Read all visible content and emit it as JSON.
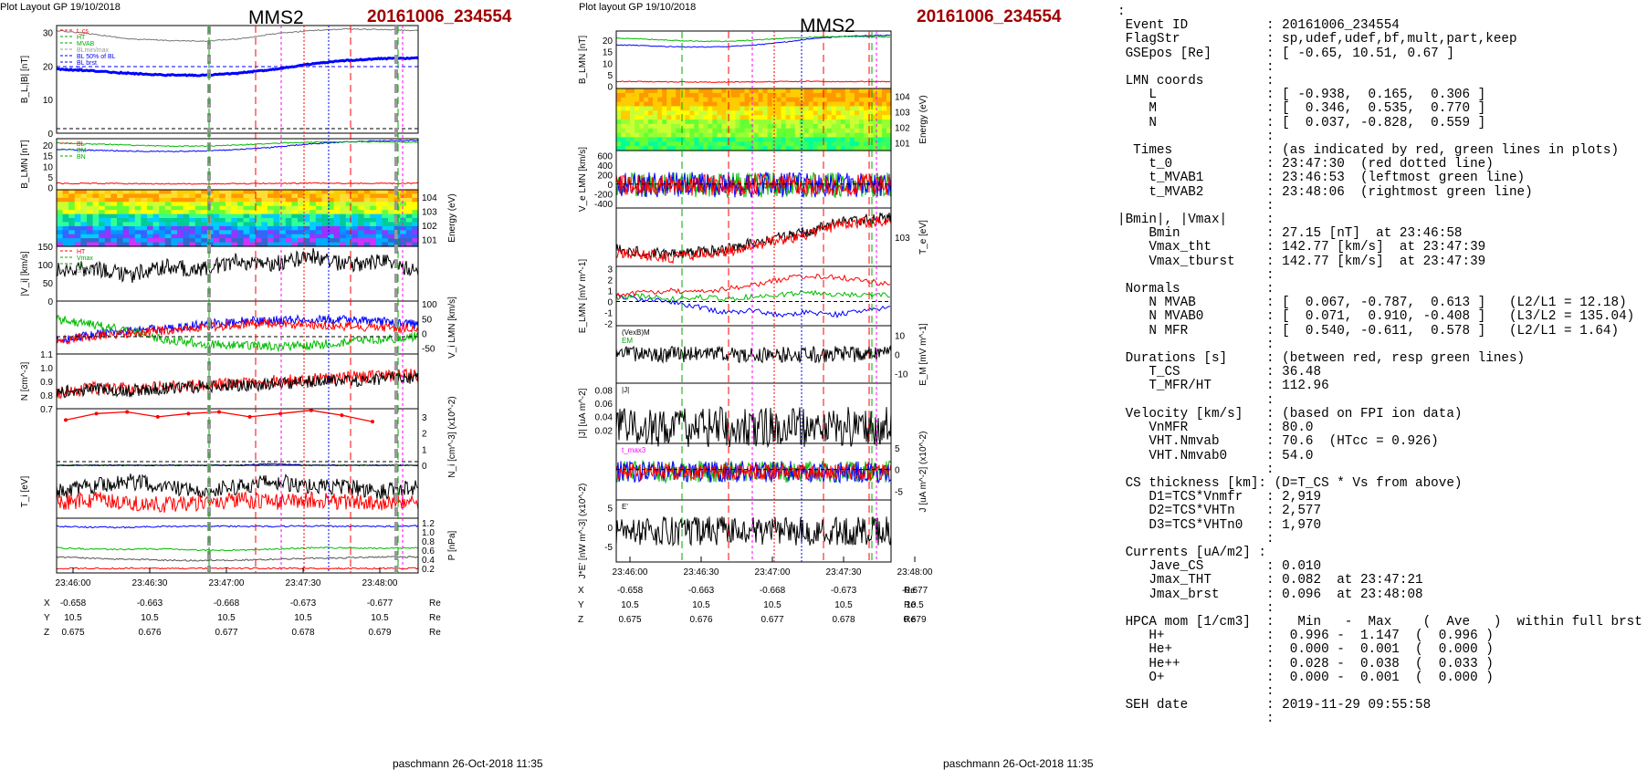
{
  "left": {
    "header": "Plot Layout GP 19/10/2018",
    "title": "MMS2",
    "event": "20161006_234554",
    "footer": "paschmann 26-Oct-2018 11:35",
    "time_ticks": [
      "23:46:00",
      "23:46:30",
      "23:47:00",
      "23:47:30",
      "23:48:00"
    ],
    "pos_rows": [
      {
        "label": "X",
        "values": [
          "-0.658",
          "-0.663",
          "-0.668",
          "-0.673",
          "-0.677"
        ],
        "unit": "Re"
      },
      {
        "label": "Y",
        "values": [
          "10.5",
          "10.5",
          "10.5",
          "10.5",
          "10.5"
        ],
        "unit": "Re"
      },
      {
        "label": "Z",
        "values": [
          "0.675",
          "0.676",
          "0.677",
          "0.678",
          "0.679"
        ],
        "unit": "Re"
      }
    ]
  },
  "middle": {
    "header": "Plot layout GP 19/10/2018",
    "title": "MMS2",
    "event": "20161006_234554",
    "footer": "paschmann 26-Oct-2018 11:35",
    "time_ticks": [
      "23:46:00",
      "23:46:30",
      "23:47:00",
      "23:47:30",
      "23:48:00"
    ],
    "pos_rows": [
      {
        "label": "X",
        "values": [
          "-0.658",
          "-0.663",
          "-0.668",
          "-0.673",
          "-0.677"
        ],
        "unit": "Re"
      },
      {
        "label": "Y",
        "values": [
          "10.5",
          "10.5",
          "10.5",
          "10.5",
          "10.5"
        ],
        "unit": "Re"
      },
      {
        "label": "Z",
        "values": [
          "0.675",
          "0.676",
          "0.677",
          "0.678",
          "0.679"
        ],
        "unit": "Re"
      }
    ]
  },
  "info_text": ":\n Event ID          : 20161006_234554\n FlagStr           : sp,udef,udef,bf,mult,part,keep\n GSEpos [Re]       : [ -0.65, 10.51, 0.67 ]\n                   :\n LMN coords        :\n    L              : [ -0.938,  0.165,  0.306 ]\n    M              : [  0.346,  0.535,  0.770 ]\n    N              : [  0.037, -0.828,  0.559 ]\n                   :\n  Times            : (as indicated by red, green lines in plots)\n    t_0            : 23:47:30  (red dotted line)\n    t_MVAB1        : 23:46:53  (leftmost green line)\n    t_MVAB2        : 23:48:06  (rightmost green line)\n                   :\n|Bmin|, |Vmax|     :\n    Bmin           : 27.15 [nT]  at 23:46:58\n    Vmax_tht       : 142.77 [km/s]  at 23:47:39\n    Vmax_tburst    : 142.77 [km/s]  at 23:47:39\n                   :\n Normals           :\n    N MVAB         : [  0.067, -0.787,  0.613 ]   (L2/L1 = 12.18)\n    N MVAB0        : [  0.071,  0.910, -0.408 ]   (L3/L2 = 135.04)\n    N MFR          : [  0.540, -0.611,  0.578 ]   (L2/L1 = 1.64)\n                   :\n Durations [s]     : (between red, resp green lines)\n    T_CS           : 36.48\n    T_MFR/HT       : 112.96\n                   :\n Velocity [km/s]   : (based on FPI ion data)\n    VnMFR          : 80.0\n    VHT.Nmvab      : 70.6  (HTcc = 0.926)\n    VHT.Nmvab0     : 54.0\n                   :\n CS thickness [km]: (D=T_CS * Vs from above)\n    D1=TCS*Vnmfr   : 2,919\n    D2=TCS*VHTn    : 2,577\n    D3=TCS*VHTn0   : 1,970\n                   :\n Currents [uA/m2] :\n    Jave_CS        : 0.010\n    Jmax_THT       : 0.082  at 23:47:21\n    Jmax_brst      : 0.096  at 23:48:08\n                   :\n HPCA mom [1/cm3]  :   Min   -  Max    (  Ave   )  within full brst int\n    H+             :  0.996 -  1.147  (  0.996 )\n    He+            :  0.000 -  0.001  (  0.000 )\n    He++           :  0.028 -  0.038  (  0.033 )\n    O+             :  0.000 -  0.001  (  0.000 )\n                   :\n SEH date          : 2019-11-29 09:55:58\n                   :",
  "chart_data": [
    {
      "type": "line",
      "figure": "left",
      "x_range": [
        "23:45:56",
        "23:48:14"
      ],
      "panels": [
        {
          "id": "B",
          "ylabel": "B_L,|B| [nT]",
          "ylim": [
            0,
            32
          ],
          "yticks": [
            "0",
            "10",
            "20",
            "30"
          ],
          "legend": [
            "t_cs",
            "HT",
            "MVAB",
            "BLmin/max",
            "BL 50% of BL",
            "BL brst",
            "Br"
          ],
          "series": [
            {
              "name": "|B|",
              "color": "#777777",
              "values": [
                30.5,
                29.5,
                28,
                27.6,
                27.3,
                28,
                29.5,
                30.5,
                31,
                30.8,
                30.5
              ]
            },
            {
              "name": "BL brst",
              "color": "#0000ff",
              "values": [
                19,
                18.5,
                17.8,
                17.3,
                17.2,
                17.8,
                19,
                20.5,
                21.6,
                22.2,
                22.3
              ]
            }
          ]
        },
        {
          "id": "BLMN",
          "ylabel": "B_LMN [nT]",
          "ylim": [
            -1,
            23
          ],
          "yticks": [
            "0",
            "5",
            "10",
            "15",
            "20"
          ],
          "legend": [
            "BL",
            "BM",
            "BN"
          ],
          "series": [
            {
              "name": "BL",
              "color": "#0000ff",
              "values": [
                18,
                17.6,
                17.2,
                17,
                17.2,
                17.8,
                19,
                20.5,
                21.5,
                22,
                22.2
              ]
            },
            {
              "name": "BM",
              "color": "#00bb00",
              "values": [
                21,
                20.5,
                20,
                19.5,
                19.5,
                20,
                20.8,
                21.3,
                21.6,
                21.5,
                21.4
              ]
            },
            {
              "name": "BN",
              "color": "#ff0000",
              "values": [
                2,
                2,
                1.9,
                1.8,
                1.8,
                1.9,
                2,
                2.1,
                2,
                2,
                2
              ]
            }
          ]
        },
        {
          "id": "ionspec",
          "ylabel": "Energy (eV)",
          "yticks": [
            "10^4",
            "10^3",
            "10^2",
            "10^1"
          ],
          "type": "heatmap"
        },
        {
          "id": "Vi",
          "ylabel": "|V_i| [km/s]",
          "ylim": [
            0,
            150
          ],
          "yticks": [
            "0",
            "50",
            "100",
            "150"
          ],
          "legend": [
            "HT",
            "Vmax",
            "cs",
            "dt_mfr"
          ],
          "series": [
            {
              "name": "|Vi|",
              "color": "#000000",
              "values": [
                85,
                90,
                70,
                95,
                85,
                110,
                100,
                125,
                100,
                110,
                80
              ]
            }
          ]
        },
        {
          "id": "ViLMN",
          "ylabel": "V_i LMN [km/s]",
          "ylim": [
            -70,
            110
          ],
          "yticks": [
            "-50",
            "0",
            "50",
            "100"
          ],
          "series": [
            {
              "name": "VL",
              "color": "#0000ff",
              "values": [
                -20,
                -5,
                10,
                15,
                30,
                40,
                45,
                50,
                45,
                40,
                30
              ]
            },
            {
              "name": "VM",
              "color": "#00bb00",
              "values": [
                50,
                30,
                10,
                -20,
                -35,
                -40,
                -45,
                -40,
                -30,
                -20,
                -10
              ]
            },
            {
              "name": "VN",
              "color": "#ff0000",
              "values": [
                -25,
                -10,
                0,
                10,
                20,
                30,
                35,
                30,
                25,
                20,
                15
              ]
            }
          ]
        },
        {
          "id": "N",
          "ylabel": "N [cm^-3]",
          "ylim": [
            0.7,
            1.1
          ],
          "yticks": [
            "0.7",
            "0.8",
            "0.9",
            "1.0",
            "1.1"
          ],
          "series": [
            {
              "name": "Ne",
              "color": "#ff0000",
              "values": [
                0.82,
                0.85,
                0.84,
                0.86,
                0.87,
                0.88,
                0.9,
                0.91,
                0.93,
                0.94,
                0.95
              ]
            },
            {
              "name": "Ni",
              "color": "#000000",
              "values": [
                0.82,
                0.84,
                0.83,
                0.85,
                0.86,
                0.87,
                0.88,
                0.9,
                0.9,
                0.92,
                0.93
              ]
            }
          ]
        },
        {
          "id": "Nminor",
          "ylabel": "N_i [cm^-3] (x10^-2)",
          "ylim": [
            0,
            3.5
          ],
          "yticks": [
            "0",
            "1",
            "2",
            "3"
          ],
          "series": [
            {
              "name": "He++",
              "color": "#ff0000",
              "values": [
                2.8,
                3.2,
                3.3,
                3.0,
                3.2,
                3.3,
                3.0,
                3.2,
                3.4,
                3.1,
                2.7
              ]
            },
            {
              "name": "He+",
              "color": "#00bb00",
              "values": [
                0,
                0,
                0,
                0,
                0,
                0,
                0,
                0,
                0,
                0,
                0
              ]
            },
            {
              "name": "O+",
              "color": "#0000ff",
              "values": [
                0,
                0,
                0,
                0,
                0,
                0,
                0.1,
                0,
                0,
                0,
                0
              ]
            }
          ]
        },
        {
          "id": "Ti",
          "ylabel": "T_i [eV]",
          "series": [
            {
              "name": "T",
              "color": "#000000",
              "values": [
                0.5,
                0.6,
                0.7,
                0.6,
                0.5,
                0.6,
                0.7,
                0.6,
                0.6,
                0.5,
                0.6
              ]
            },
            {
              "name": "T2",
              "color": "#ff0000",
              "values": [
                0.3,
                0.35,
                0.3,
                0.25,
                0.3,
                0.35,
                0.3,
                0.35,
                0.3,
                0.3,
                0.3
              ]
            }
          ]
        },
        {
          "id": "P",
          "ylabel": "P [nPa]",
          "ylim": [
            0.1,
            1.3
          ],
          "yticks": [
            "0.2",
            "0.4",
            "0.6",
            "0.8",
            "1.0",
            "1.2"
          ],
          "series": [
            {
              "name": "Pb",
              "color": "#0000ff",
              "values": [
                1.12,
                1.1,
                1.1,
                1.12,
                1.13,
                1.12,
                1.12,
                1.13,
                1.12,
                1.12,
                1.13
              ]
            },
            {
              "name": "Pi",
              "color": "#00bb00",
              "values": [
                0.65,
                0.62,
                0.62,
                0.63,
                0.6,
                0.6,
                0.62,
                0.65,
                0.65,
                0.64,
                0.65
              ]
            },
            {
              "name": "Ptot",
              "color": "#555555",
              "values": [
                0.45,
                0.42,
                0.4,
                0.38,
                0.37,
                0.38,
                0.4,
                0.42,
                0.43,
                0.45,
                0.45
              ]
            },
            {
              "name": "Pe",
              "color": "#ff0000",
              "values": [
                0.2,
                0.2,
                0.2,
                0.2,
                0.2,
                0.2,
                0.2,
                0.2,
                0.2,
                0.2,
                0.2
              ]
            }
          ]
        }
      ]
    },
    {
      "type": "line",
      "figure": "middle",
      "x_range": [
        "23:45:56",
        "23:48:14"
      ],
      "panels": [
        {
          "id": "BLMN",
          "ylabel": "B_LMN [nT]",
          "ylim": [
            -1,
            24
          ],
          "yticks": [
            "0",
            "5",
            "10",
            "15",
            "20"
          ],
          "series": [
            {
              "name": "BL",
              "color": "#0000ff",
              "values": [
                18,
                17.6,
                17.2,
                17,
                17.2,
                17.8,
                19,
                20.5,
                21.5,
                22,
                22.2
              ]
            },
            {
              "name": "BM",
              "color": "#00bb00",
              "values": [
                21,
                20.5,
                20,
                19.5,
                19.5,
                20,
                20.8,
                21.3,
                21.6,
                21.5,
                21.4
              ]
            },
            {
              "name": "BN",
              "color": "#ff0000",
              "values": [
                2,
                2,
                1.9,
                1.8,
                1.8,
                1.9,
                2,
                2.1,
                2,
                2,
                2
              ]
            }
          ]
        },
        {
          "id": "espec",
          "ylabel": "Energy (eV)",
          "yticks": [
            "10^4",
            "10^3",
            "10^2",
            "10^1"
          ],
          "type": "heatmap"
        },
        {
          "id": "VeLMN",
          "ylabel": "V_e LMN [km/s]",
          "ylim": [
            -500,
            700
          ],
          "yticks": [
            "-400",
            "-200",
            "0",
            "200",
            "400",
            "600"
          ]
        },
        {
          "id": "Te",
          "ylabel": "T_e [eV]",
          "yticks": [
            "10^3"
          ],
          "series": [
            {
              "name": "Te",
              "color": "#000000",
              "values": [
                0.3,
                0.25,
                0.2,
                0.25,
                0.3,
                0.4,
                0.5,
                0.6,
                0.75,
                0.8,
                0.85
              ]
            },
            {
              "name": "Tperp",
              "color": "#ff0000",
              "values": [
                0.25,
                0.2,
                0.15,
                0.2,
                0.25,
                0.35,
                0.45,
                0.55,
                0.7,
                0.75,
                0.8
              ]
            }
          ]
        },
        {
          "id": "ELMN",
          "ylabel": "E_LMN [mV m^-1]",
          "ylim": [
            -2.2,
            3.2
          ],
          "yticks": [
            "-2",
            "-1",
            "0",
            "1",
            "2",
            "3"
          ],
          "series": [
            {
              "name": "EL",
              "color": "#0000ff",
              "values": [
                0.5,
                0.2,
                0,
                -0.5,
                -1,
                -0.8,
                -1.2,
                -1,
                -1.2,
                -0.8,
                -0.5
              ]
            },
            {
              "name": "EM",
              "color": "#00bb00",
              "values": [
                0.3,
                0.5,
                0.2,
                0.4,
                0.2,
                0.5,
                0.6,
                0.8,
                0.6,
                0.7,
                0.5
              ]
            },
            {
              "name": "EN",
              "color": "#ff0000",
              "values": [
                0.5,
                0.8,
                1,
                0.8,
                1.2,
                1.5,
                2,
                2.4,
                2.2,
                2,
                1.5
              ]
            }
          ]
        },
        {
          "id": "EM",
          "ylabel": "E_M [mV m^-1]",
          "ylim": [
            -15,
            15
          ],
          "yticks": [
            "-10",
            "0",
            "10"
          ],
          "legend": [
            "(VexB)M",
            "EM"
          ]
        },
        {
          "id": "J",
          "ylabel": "|J| [uA m^-2]",
          "ylim": [
            0,
            0.09
          ],
          "yticks": [
            "0.02",
            "0.04",
            "0.06",
            "0.08"
          ],
          "legend": [
            "|J|"
          ]
        },
        {
          "id": "JLMN",
          "ylabel": "J [uA m^-2] (x10^-2)",
          "ylim": [
            -7,
            6
          ],
          "yticks": [
            "-5",
            "0",
            "5"
          ],
          "legend": [
            "t_max3"
          ]
        },
        {
          "id": "JE",
          "ylabel": "J*E' [nW m^-3] (x10^-2)",
          "ylim": [
            -9,
            7
          ],
          "yticks": [
            "-5",
            "0",
            "5"
          ],
          "legend": [
            "E'"
          ]
        }
      ]
    }
  ]
}
